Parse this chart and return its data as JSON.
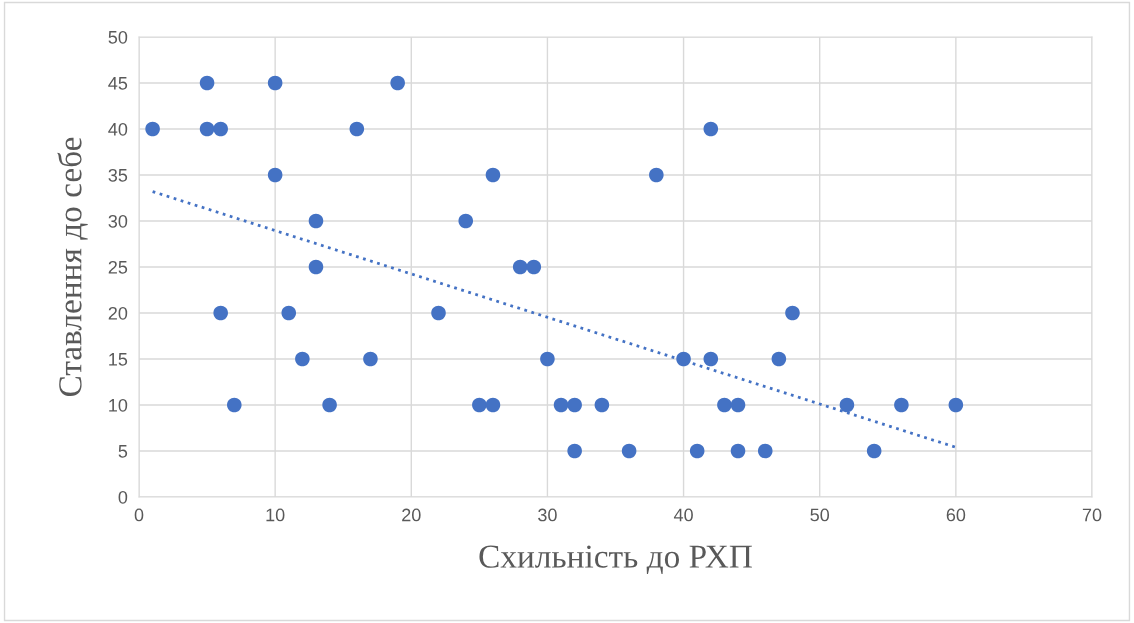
{
  "chart_data": {
    "type": "scatter",
    "xlabel": "Схильність до РХП",
    "ylabel": "Ставлення до себе",
    "xlim": [
      0,
      70
    ],
    "xticks": [
      0,
      10,
      20,
      30,
      40,
      50,
      60,
      70
    ],
    "ylim": [
      0,
      50
    ],
    "yticks": [
      0,
      5,
      10,
      15,
      20,
      25,
      30,
      35,
      40,
      45,
      50
    ],
    "grid": true,
    "marker": "circle",
    "series": [
      {
        "color": "#4472c4",
        "x": [
          1,
          5,
          5,
          6,
          10,
          10,
          19,
          16,
          6,
          7,
          13,
          13,
          11,
          12,
          14,
          17,
          22,
          24,
          26,
          25,
          26,
          28,
          29,
          30,
          31,
          32,
          32,
          34,
          36,
          38,
          40,
          41,
          42,
          42,
          43,
          44,
          44,
          46,
          47,
          48,
          52,
          54,
          56,
          60
        ],
        "values": [
          40,
          45,
          40,
          40,
          45,
          35,
          45,
          40,
          20,
          10,
          30,
          25,
          20,
          15,
          10,
          15,
          20,
          30,
          35,
          10,
          10,
          25,
          25,
          15,
          10,
          10,
          5,
          10,
          5,
          35,
          15,
          5,
          40,
          15,
          10,
          10,
          5,
          5,
          15,
          20,
          10,
          5,
          10,
          10
        ]
      },
      {
        "type": "line",
        "color": "#4472c4",
        "line_style": "dotted",
        "marker": "none",
        "x": [
          1,
          60
        ],
        "values": [
          33.2,
          5.4
        ]
      }
    ]
  }
}
